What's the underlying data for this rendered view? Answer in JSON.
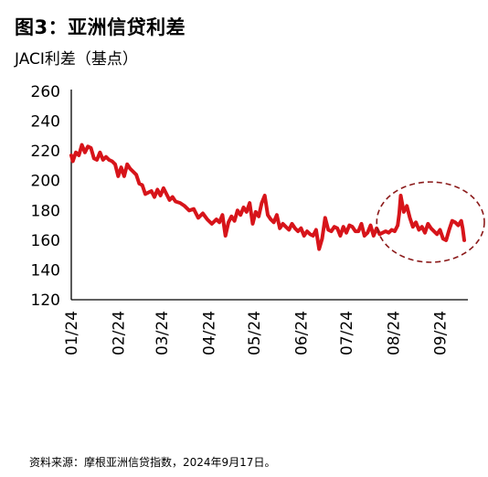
{
  "header": {
    "title": "图3：亚洲信贷利差",
    "subtitle": "JACI利差（基点）"
  },
  "footer": {
    "source": "资料来源：摩根亚洲信贷指数，2024年9月17日。"
  },
  "colors": {
    "series": "#d7141a",
    "highlight_ellipse": "#8b1a1a",
    "axis": "#000000"
  },
  "chart_data": {
    "type": "line",
    "title": "图3：亚洲信贷利差",
    "ylabel": "JACI利差（基点）",
    "xlabel": "",
    "ylim": [
      120,
      260
    ],
    "yticks": [
      120,
      140,
      160,
      180,
      200,
      220,
      240,
      260
    ],
    "xlim": [
      "2024-01-01",
      "2024-09-17"
    ],
    "xticks": [
      {
        "label": "01/24",
        "date": "2024-01-01"
      },
      {
        "label": "02/24",
        "date": "2024-02-01"
      },
      {
        "label": "03/24",
        "date": "2024-03-01"
      },
      {
        "label": "04/24",
        "date": "2024-04-01"
      },
      {
        "label": "05/24",
        "date": "2024-05-01"
      },
      {
        "label": "06/24",
        "date": "2024-06-01"
      },
      {
        "label": "07/24",
        "date": "2024-07-01"
      },
      {
        "label": "08/24",
        "date": "2024-08-01"
      },
      {
        "label": "09/24",
        "date": "2024-09-01"
      }
    ],
    "grid": false,
    "legend": "none",
    "annotation": {
      "type": "dashed-ellipse",
      "x_range": [
        "2024-08-01",
        "2024-09-17"
      ],
      "y_range": [
        155,
        193
      ]
    },
    "series": [
      {
        "x": [
          "2024-01-01",
          "2024-01-02",
          "2024-01-04",
          "2024-01-06",
          "2024-01-08",
          "2024-01-10",
          "2024-01-12",
          "2024-01-14",
          "2024-01-16",
          "2024-01-18",
          "2024-01-20",
          "2024-01-22",
          "2024-01-24",
          "2024-01-26",
          "2024-01-28",
          "2024-01-30",
          "2024-02-01",
          "2024-02-03",
          "2024-02-05",
          "2024-02-07",
          "2024-02-09",
          "2024-02-11",
          "2024-02-13",
          "2024-02-15",
          "2024-02-17",
          "2024-02-19",
          "2024-02-21",
          "2024-02-23",
          "2024-02-25",
          "2024-02-27",
          "2024-02-29",
          "2024-03-02",
          "2024-03-04",
          "2024-03-06",
          "2024-03-08",
          "2024-03-10",
          "2024-03-13",
          "2024-03-16",
          "2024-03-19",
          "2024-03-22",
          "2024-03-25",
          "2024-03-28",
          "2024-03-31",
          "2024-04-03",
          "2024-04-06",
          "2024-04-08",
          "2024-04-10",
          "2024-04-12",
          "2024-04-14",
          "2024-04-16",
          "2024-04-18",
          "2024-04-20",
          "2024-04-22",
          "2024-04-24",
          "2024-04-26",
          "2024-04-28",
          "2024-04-30",
          "2024-05-02",
          "2024-05-04",
          "2024-05-06",
          "2024-05-08",
          "2024-05-10",
          "2024-05-12",
          "2024-05-14",
          "2024-05-16",
          "2024-05-18",
          "2024-05-20",
          "2024-05-22",
          "2024-05-24",
          "2024-05-26",
          "2024-05-28",
          "2024-05-30",
          "2024-06-01",
          "2024-06-03",
          "2024-06-05",
          "2024-06-07",
          "2024-06-09",
          "2024-06-11",
          "2024-06-13",
          "2024-06-15",
          "2024-06-17",
          "2024-06-19",
          "2024-06-21",
          "2024-06-23",
          "2024-06-25",
          "2024-06-27",
          "2024-06-29",
          "2024-07-01",
          "2024-07-03",
          "2024-07-05",
          "2024-07-07",
          "2024-07-09",
          "2024-07-11",
          "2024-07-13",
          "2024-07-15",
          "2024-07-17",
          "2024-07-19",
          "2024-07-21",
          "2024-07-23",
          "2024-07-25",
          "2024-07-27",
          "2024-07-29",
          "2024-07-31",
          "2024-08-02",
          "2024-08-04",
          "2024-08-05",
          "2024-08-06",
          "2024-08-08",
          "2024-08-10",
          "2024-08-12",
          "2024-08-14",
          "2024-08-16",
          "2024-08-18",
          "2024-08-20",
          "2024-08-22",
          "2024-08-24",
          "2024-08-26",
          "2024-08-28",
          "2024-08-30",
          "2024-09-01",
          "2024-09-03",
          "2024-09-05",
          "2024-09-07",
          "2024-09-09",
          "2024-09-11",
          "2024-09-13",
          "2024-09-15",
          "2024-09-16",
          "2024-09-17"
        ],
        "values": [
          217,
          213,
          219,
          217,
          224,
          219,
          223,
          222,
          215,
          214,
          219,
          214,
          216,
          214,
          213,
          211,
          203,
          209,
          203,
          211,
          208,
          206,
          204,
          198,
          197,
          191,
          192,
          193,
          189,
          194,
          190,
          195,
          191,
          187,
          189,
          186,
          185,
          183,
          180,
          181,
          175,
          178,
          174,
          171,
          174,
          172,
          177,
          163,
          172,
          176,
          173,
          180,
          177,
          182,
          179,
          185,
          171,
          179,
          176,
          185,
          190,
          177,
          174,
          172,
          177,
          168,
          171,
          169,
          167,
          171,
          168,
          166,
          168,
          163,
          166,
          164,
          163,
          167,
          154,
          161,
          175,
          167,
          166,
          169,
          168,
          163,
          169,
          165,
          170,
          169,
          166,
          166,
          171,
          163,
          165,
          170,
          163,
          168,
          164,
          165,
          166,
          165,
          167,
          166,
          170,
          178,
          190,
          179,
          183,
          175,
          169,
          172,
          167,
          169,
          165,
          171,
          168,
          166,
          164,
          167,
          161,
          160,
          167,
          173,
          172,
          170,
          173,
          168,
          160
        ]
      }
    ]
  }
}
